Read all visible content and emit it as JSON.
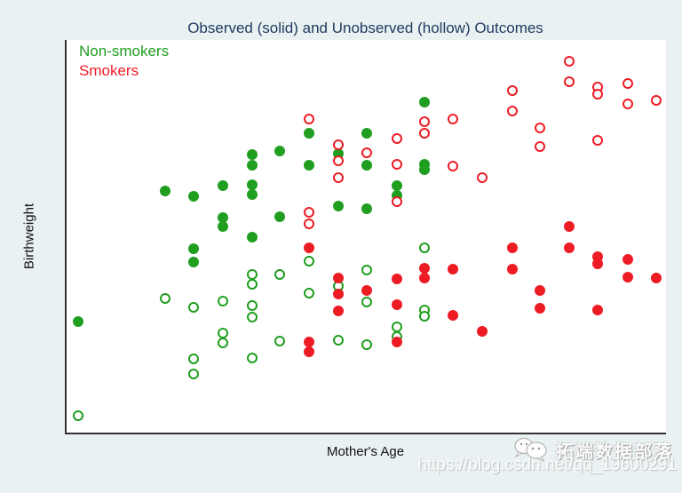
{
  "title": "Observed (solid) and Unobserved (hollow) Outcomes",
  "axes": {
    "x_label": "Mother's Age",
    "y_label": "Birthweight"
  },
  "legend": {
    "items": [
      {
        "label": "Non-smokers",
        "color": "#1f9e1f"
      },
      {
        "label": "Smokers",
        "color": "#ed1c24"
      }
    ]
  },
  "colors": {
    "page_background": "#e9f1f2",
    "plot_background": "#ffffff",
    "axis_line": "#333333",
    "title_text": "#1e3a5f",
    "nonsmoker_green": "#1f9e1f",
    "smoker_red": "#ed1c24"
  },
  "watermark": {
    "name": "拓端数据部落",
    "url": "https://blog.csdn.net/qq_19600291",
    "icon": "wechat-chat-bubbles-icon"
  },
  "chart_data": {
    "type": "scatter",
    "title": "Observed (solid) and Unobserved (hollow) Outcomes",
    "xlabel": "Mother's Age",
    "ylabel": "Birthweight",
    "grid": false,
    "axis_tick_labels": "none shown",
    "units": "x and y are percent of axis range (0-100), y measured up from bottom axis",
    "xlim": [
      0,
      100
    ],
    "ylim": [
      0,
      100
    ],
    "legend_position": "top-left inside plot",
    "series": [
      {
        "name": "Non-smokers observed",
        "marker": "solid",
        "color": "#1f9e1f",
        "points": [
          [
            1.9,
            28.2
          ],
          [
            16.4,
            61.5
          ],
          [
            21.2,
            60.2
          ],
          [
            21.2,
            46.8
          ],
          [
            21.2,
            43.5
          ],
          [
            26.0,
            62.9
          ],
          [
            26.0,
            54.8
          ],
          [
            26.0,
            52.5
          ],
          [
            30.9,
            70.9
          ],
          [
            30.9,
            68.2
          ],
          [
            30.9,
            63.1
          ],
          [
            30.9,
            60.7
          ],
          [
            30.9,
            49.8
          ],
          [
            35.6,
            71.7
          ],
          [
            35.6,
            54.9
          ],
          [
            40.4,
            76.2
          ],
          [
            40.4,
            68.1
          ],
          [
            45.3,
            71.1
          ],
          [
            45.3,
            57.6
          ],
          [
            50.1,
            76.2
          ],
          [
            50.1,
            68.2
          ],
          [
            50.1,
            57.1
          ],
          [
            55.1,
            62.9
          ],
          [
            55.1,
            60.4
          ],
          [
            59.7,
            84.2
          ],
          [
            59.7,
            68.4
          ],
          [
            59.7,
            66.9
          ]
        ]
      },
      {
        "name": "Non-smokers unobserved",
        "marker": "hollow",
        "color": "#1f9e1f",
        "points": [
          [
            1.9,
            4.3
          ],
          [
            16.4,
            34.2
          ],
          [
            21.2,
            31.8
          ],
          [
            21.2,
            18.7
          ],
          [
            21.2,
            14.9
          ],
          [
            26.0,
            33.4
          ],
          [
            26.0,
            25.3
          ],
          [
            26.0,
            22.9
          ],
          [
            30.9,
            40.2
          ],
          [
            30.9,
            37.7
          ],
          [
            30.9,
            32.3
          ],
          [
            30.9,
            29.5
          ],
          [
            30.9,
            18.9
          ],
          [
            35.6,
            40.2
          ],
          [
            35.6,
            23.3
          ],
          [
            40.4,
            43.7
          ],
          [
            40.4,
            35.5
          ],
          [
            45.3,
            37.3
          ],
          [
            45.3,
            23.5
          ],
          [
            50.1,
            41.4
          ],
          [
            50.1,
            33.3
          ],
          [
            50.1,
            22.5
          ],
          [
            55.1,
            27.0
          ],
          [
            55.1,
            24.5
          ],
          [
            59.7,
            47.1
          ],
          [
            59.7,
            31.3
          ],
          [
            59.7,
            29.7
          ]
        ]
      },
      {
        "name": "Smokers observed",
        "marker": "solid",
        "color": "#ed1c24",
        "points": [
          [
            40.4,
            47.0
          ],
          [
            40.4,
            23.0
          ],
          [
            40.4,
            20.5
          ],
          [
            45.3,
            39.3
          ],
          [
            45.3,
            35.4
          ],
          [
            45.3,
            31.1
          ],
          [
            50.1,
            36.2
          ],
          [
            55.1,
            39.2
          ],
          [
            55.1,
            32.6
          ],
          [
            55.1,
            23.0
          ],
          [
            59.7,
            41.9
          ],
          [
            59.7,
            39.3
          ],
          [
            64.5,
            41.7
          ],
          [
            64.5,
            29.9
          ],
          [
            69.3,
            25.7
          ],
          [
            74.3,
            47.0
          ],
          [
            74.3,
            41.7
          ],
          [
            79.0,
            36.3
          ],
          [
            79.0,
            31.6
          ],
          [
            83.9,
            52.4
          ],
          [
            83.9,
            47.0
          ],
          [
            88.6,
            44.7
          ],
          [
            88.6,
            42.9
          ],
          [
            88.6,
            31.2
          ],
          [
            93.6,
            44.2
          ],
          [
            93.6,
            39.5
          ],
          [
            98.4,
            39.3
          ]
        ]
      },
      {
        "name": "Smokers unobserved",
        "marker": "hollow",
        "color": "#ed1c24",
        "points": [
          [
            40.4,
            79.8
          ],
          [
            40.4,
            56.1
          ],
          [
            40.4,
            53.1
          ],
          [
            45.3,
            73.2
          ],
          [
            45.3,
            69.3
          ],
          [
            45.3,
            64.9
          ],
          [
            50.1,
            71.2
          ],
          [
            55.1,
            75.0
          ],
          [
            55.1,
            68.4
          ],
          [
            55.1,
            58.9
          ],
          [
            59.7,
            79.2
          ],
          [
            59.7,
            76.2
          ],
          [
            64.5,
            79.8
          ],
          [
            64.5,
            67.8
          ],
          [
            69.3,
            64.9
          ],
          [
            74.3,
            87.0
          ],
          [
            74.3,
            82.0
          ],
          [
            79.0,
            77.7
          ],
          [
            79.0,
            72.8
          ],
          [
            83.9,
            94.6
          ],
          [
            83.9,
            89.3
          ],
          [
            88.6,
            88.0
          ],
          [
            88.6,
            86.1
          ],
          [
            88.6,
            74.5
          ],
          [
            93.6,
            88.9
          ],
          [
            93.6,
            83.7
          ],
          [
            98.4,
            84.6
          ]
        ]
      }
    ]
  }
}
